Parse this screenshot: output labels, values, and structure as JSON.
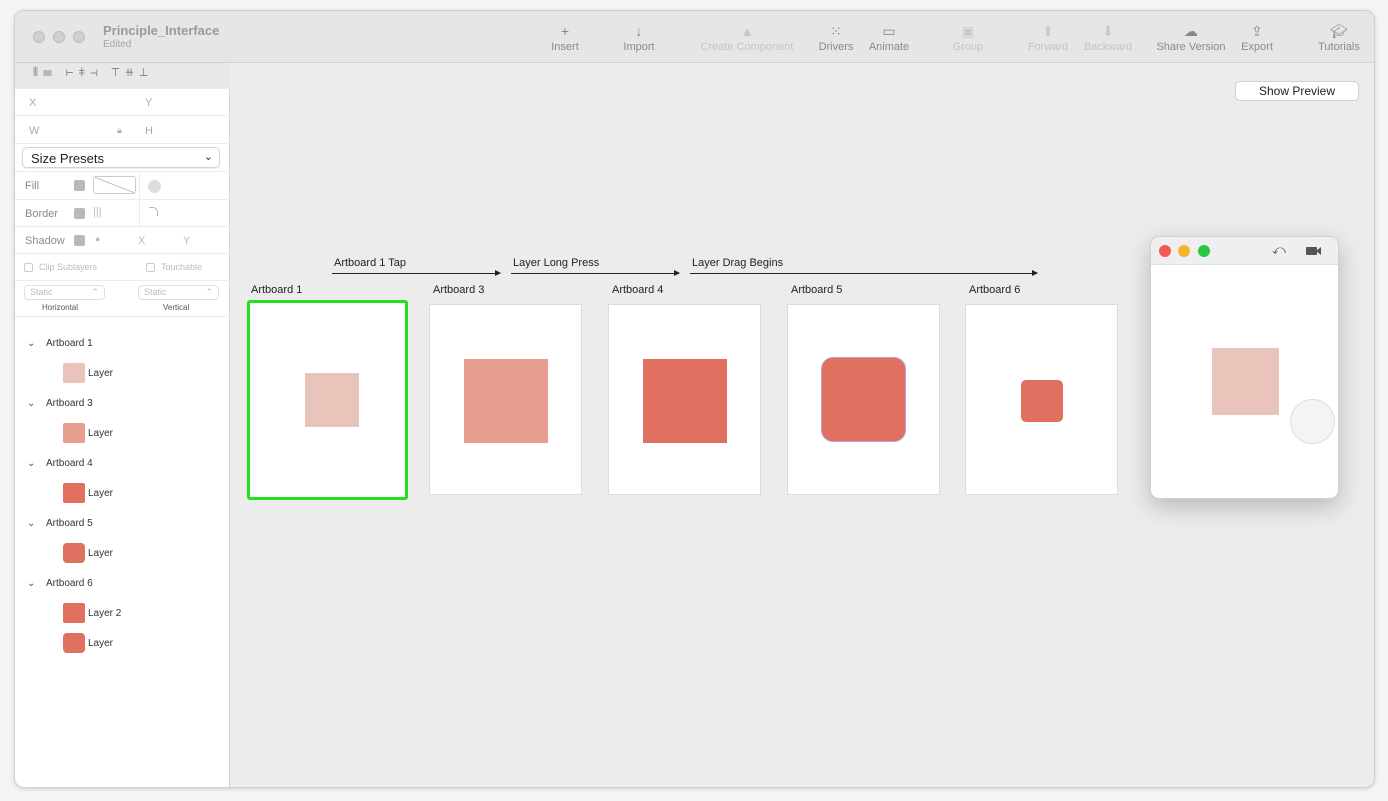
{
  "window": {
    "title": "Principle_Interface",
    "subtitle": "Edited"
  },
  "toolbar": [
    {
      "label": "Insert",
      "icon": "plus-icon",
      "enabled": true
    },
    {
      "label": "Import",
      "icon": "arrow-down-icon",
      "enabled": true
    },
    {
      "label": "Create Component",
      "icon": "component-icon",
      "enabled": false
    },
    {
      "label": "Drivers",
      "icon": "drivers-icon",
      "enabled": true
    },
    {
      "label": "Animate",
      "icon": "animate-icon",
      "enabled": true
    },
    {
      "label": "Group",
      "icon": "group-icon",
      "enabled": false
    },
    {
      "label": "Forward",
      "icon": "forward-icon",
      "enabled": false
    },
    {
      "label": "Backward",
      "icon": "backward-icon",
      "enabled": false
    },
    {
      "label": "Share Version",
      "icon": "cloud-upload-icon",
      "enabled": true
    },
    {
      "label": "Export",
      "icon": "share-icon",
      "enabled": true
    },
    {
      "label": "Tutorials",
      "icon": "graduation-cap-icon",
      "enabled": true
    }
  ],
  "inspector": {
    "x": "X",
    "y": "Y",
    "w": "W",
    "h": "H",
    "size_presets": "Size Presets",
    "fill": "Fill",
    "border": "Border",
    "shadow": "Shadow",
    "shadow_x": "X",
    "shadow_y": "Y",
    "clip_sublayers": "Clip Sublayers",
    "touchable": "Touchable",
    "horizontal_value": "Static",
    "vertical_value": "Static",
    "horizontal": "Horizontal",
    "vertical": "Vertical"
  },
  "layers": [
    {
      "name": "Artboard 1",
      "children": [
        {
          "name": "Layer",
          "color": "#e8c4ba",
          "rounded": false
        }
      ]
    },
    {
      "name": "Artboard 3",
      "children": [
        {
          "name": "Layer",
          "color": "#e59e90",
          "rounded": false
        }
      ]
    },
    {
      "name": "Artboard 4",
      "children": [
        {
          "name": "Layer",
          "color": "#e07060",
          "rounded": false
        }
      ]
    },
    {
      "name": "Artboard 5",
      "children": [
        {
          "name": "Layer",
          "color": "#e07060",
          "rounded": true
        }
      ]
    },
    {
      "name": "Artboard 6",
      "children": [
        {
          "name": "Layer 2",
          "color": "#e07060",
          "rounded": false
        },
        {
          "name": "Layer",
          "color": "#e07060",
          "rounded": true
        }
      ]
    }
  ],
  "canvas": {
    "show_preview": "Show Preview",
    "artboards": [
      "Artboard 1",
      "Artboard 3",
      "Artboard 4",
      "Artboard 5",
      "Artboard 6"
    ],
    "transitions": [
      "Artboard 1 Tap",
      "Layer Long Press",
      "Layer Drag Begins"
    ],
    "selected_color": "#22e01a"
  },
  "preview": {
    "square_color": "#e8c4ba"
  }
}
